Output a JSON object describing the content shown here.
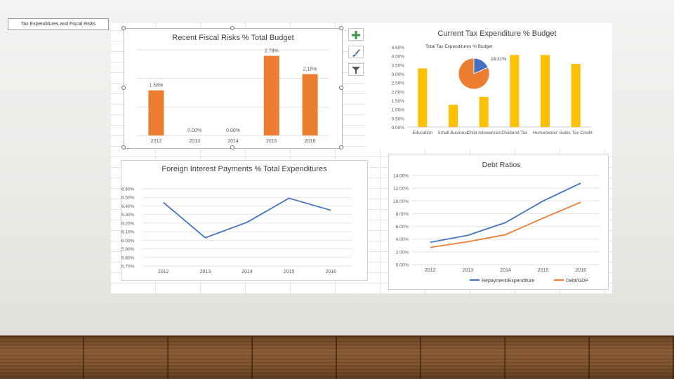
{
  "slide_title": "Tax Expenditures and Fiscal Risks",
  "colors": {
    "orange": "#ED7D31",
    "gold": "#FFC000",
    "blue": "#4472C4",
    "axis_text": "#595959",
    "grid": "#d9d9d9"
  },
  "chart_tools": {
    "add_element_icon": "plus-icon",
    "styles_icon": "brush-icon",
    "filter_icon": "funnel-icon"
  },
  "chart_data": [
    {
      "id": "fiscal_risks",
      "type": "bar",
      "title": "Recent Fiscal Risks % Total Budget",
      "categories": [
        "2012",
        "2013",
        "2014",
        "2015",
        "2016"
      ],
      "values": [
        1.58,
        0.0,
        0.0,
        2.79,
        2.15
      ],
      "data_labels": [
        "1.58%",
        "0.00%",
        "0.00%",
        "2.79%",
        "2.15%"
      ],
      "ylim": [
        0,
        3.0
      ],
      "color": "#ED7D31",
      "grid": true
    },
    {
      "id": "tax_expenditure",
      "type": "bar",
      "title": "Current Tax Expenditure % Budget",
      "categories": [
        "Education",
        "Small Business",
        "Child Allowances",
        "Dividend Tax",
        "Homeowner",
        "Sales Tax Credit"
      ],
      "values": [
        3.3,
        1.25,
        1.7,
        4.05,
        4.05,
        3.55
      ],
      "yticks": [
        "0.00%",
        "0.50%",
        "1.00%",
        "1.50%",
        "2.00%",
        "2.50%",
        "3.00%",
        "3.50%",
        "4.00%",
        "4.50%"
      ],
      "ylim": [
        0,
        4.5
      ],
      "color": "#FFC000",
      "grid": false,
      "inset_pie": {
        "label": "Total Tax Expenditures % Budget",
        "value": 18.21,
        "value_label": "18.21%",
        "colors": [
          "#4472C4",
          "#ED7D31"
        ]
      }
    },
    {
      "id": "foreign_interest",
      "type": "line",
      "title": "Foreign Interest Payments % Total Expenditures",
      "categories": [
        "2012",
        "2013",
        "2014",
        "2015",
        "2016"
      ],
      "values": [
        6.44,
        6.03,
        6.21,
        6.49,
        6.35
      ],
      "yticks": [
        "5.70%",
        "5.80%",
        "5.90%",
        "6.00%",
        "6.10%",
        "6.20%",
        "6.30%",
        "6.40%",
        "6.50%",
        "6.60%"
      ],
      "ylim": [
        5.7,
        6.6
      ],
      "color": "#4472C4",
      "grid": true
    },
    {
      "id": "debt_ratios",
      "type": "line",
      "title": "Debt Ratios",
      "categories": [
        "2012",
        "2013",
        "2014",
        "2015",
        "2016"
      ],
      "series": [
        {
          "name": "Repayment/Expenditure",
          "values": [
            3.5,
            4.6,
            6.6,
            10.0,
            12.8
          ],
          "color": "#4472C4"
        },
        {
          "name": "Debt/GDP",
          "values": [
            2.7,
            3.6,
            4.7,
            7.3,
            9.8
          ],
          "color": "#ED7D31"
        }
      ],
      "yticks": [
        "0.00%",
        "2.00%",
        "4.00%",
        "6.00%",
        "8.00%",
        "10.00%",
        "12.00%",
        "14.00%"
      ],
      "ylim": [
        0,
        14
      ],
      "legend": "bottom",
      "grid": true
    }
  ]
}
